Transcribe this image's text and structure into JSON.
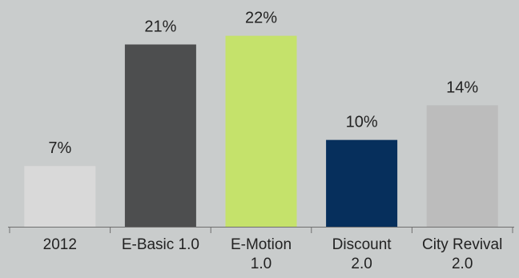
{
  "chart_data": {
    "type": "bar",
    "title": "",
    "xlabel": "",
    "ylabel": "",
    "categories": [
      [
        "2012"
      ],
      [
        "E-Basic 1.0"
      ],
      [
        "E-Motion",
        "1.0"
      ],
      [
        "Discount",
        "2.0"
      ],
      [
        "City Revival",
        "2.0"
      ]
    ],
    "values": [
      7,
      21,
      22,
      10,
      14
    ],
    "data_labels": [
      "7%",
      "21%",
      "22%",
      "10%",
      "14%"
    ],
    "unit": "%",
    "ylim": [
      0,
      24
    ],
    "grid": false,
    "legend": "none",
    "colors": [
      "#d9d9d9",
      "#4d4e4f",
      "#c5e26b",
      "#062f5c",
      "#bcbcbc"
    ],
    "axis_color": "#6f6f6f",
    "background": "#c9cccc"
  }
}
